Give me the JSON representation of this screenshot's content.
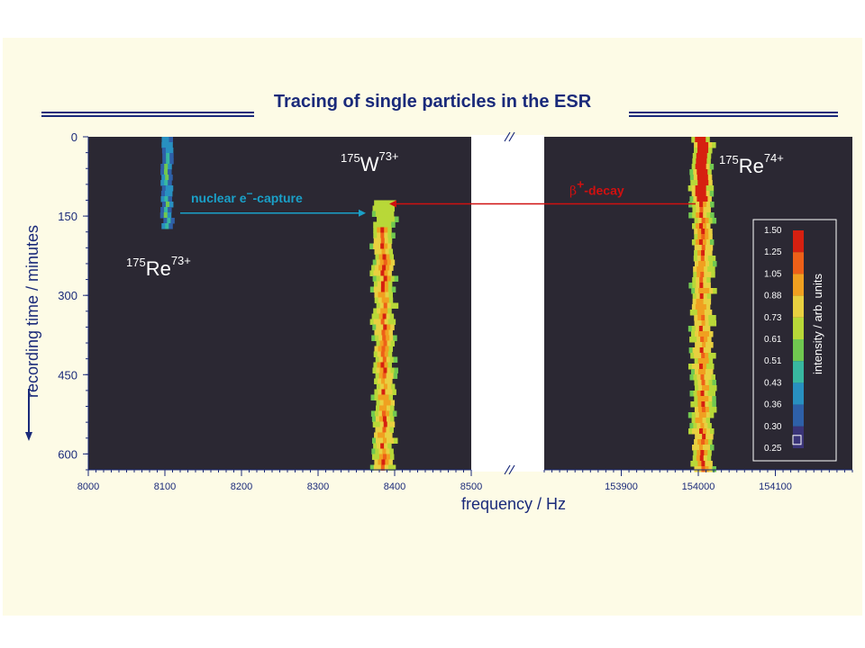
{
  "title": "Tracing of single particles in the ESR",
  "colors": {
    "navy": "#1a2a7a",
    "plot_bg": "#2b2833",
    "slide_bg": "#fdfbe6",
    "arrow_blue": "#1aa0c8",
    "arrow_red": "#d01010"
  },
  "chart_data": {
    "type": "heatmap",
    "xlabel": "frequency / Hz",
    "ylabel": "recording time / minutes",
    "y_ticks": [
      0,
      150,
      300,
      450,
      600
    ],
    "ylim": [
      0,
      630
    ],
    "y_inverted": true,
    "panels": [
      {
        "xlim": [
          8000,
          8500
        ],
        "x_ticks": [
          8000,
          8100,
          8200,
          8300,
          8400,
          8500
        ]
      },
      {
        "xlim": [
          153800,
          154200
        ],
        "x_ticks": [
          153900,
          154000,
          154100
        ]
      }
    ],
    "axis_break": true,
    "colorbar": {
      "label": "intensity / arb. units",
      "ticks": [
        "1.50",
        "1.25",
        "1.05",
        "0.88",
        "0.73",
        "0.61",
        "0.51",
        "0.43",
        "0.36",
        "0.30",
        "0.25"
      ],
      "colors": [
        "#d62010",
        "#ee6018",
        "#f0a020",
        "#e8d040",
        "#b8d838",
        "#70c850",
        "#38b8a0",
        "#2890c0",
        "#2e60a8",
        "#3a3478",
        "#2b2833"
      ]
    },
    "traces": [
      {
        "name": "175Re73+",
        "x": 8103,
        "t_start": 0,
        "t_end": 170,
        "intensity": "low"
      },
      {
        "name": "175W73+",
        "x": 8386,
        "t_start": 120,
        "t_end": 630,
        "intensity": "high"
      },
      {
        "name": "175Re74+",
        "x": 154005,
        "t_start": 0,
        "t_end": 630,
        "intensity": "high"
      }
    ],
    "annotations": {
      "ions": [
        {
          "mass": "175",
          "element": "Re",
          "charge": "73+"
        },
        {
          "mass": "175",
          "element": "W",
          "charge": "73+"
        },
        {
          "mass": "175",
          "element": "Re",
          "charge": "74+"
        }
      ],
      "nuclear_capture": {
        "text1": "nuclear",
        "text2": "e",
        "sup": "−",
        "text3": "-capture",
        "t": 175
      },
      "beta_decay": {
        "greek": "β",
        "sup": "+",
        "text": "-decay",
        "t": 115
      }
    }
  }
}
